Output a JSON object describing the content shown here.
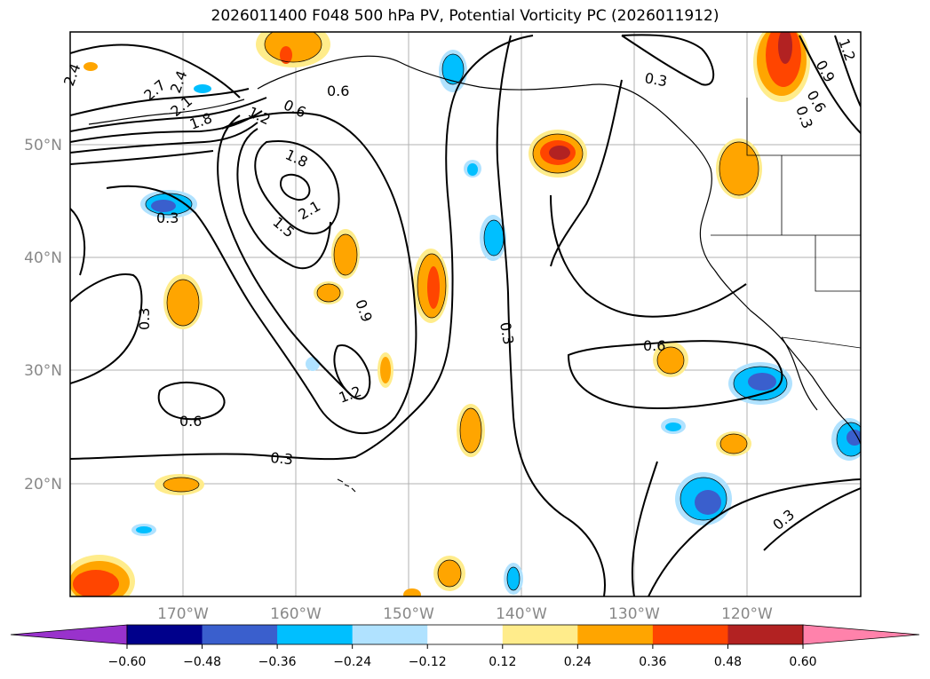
{
  "title": "2026011400 F048 500 hPa PV, Potential Vorticity PC (2026011912)",
  "map": {
    "lat_labels": [
      {
        "text": "50°N",
        "lat": 50
      },
      {
        "text": "40°N",
        "lat": 40
      },
      {
        "text": "30°N",
        "lat": 30
      },
      {
        "text": "20°N",
        "lat": 20
      }
    ],
    "lon_labels": [
      {
        "text": "170°W",
        "lon": -170
      },
      {
        "text": "160°W",
        "lon": -160
      },
      {
        "text": "150°W",
        "lon": -150
      },
      {
        "text": "140°W",
        "lon": -140
      },
      {
        "text": "130°W",
        "lon": -130
      },
      {
        "text": "120°W",
        "lon": -120
      }
    ],
    "contour_labels": [
      "2.4",
      "2.7",
      "2.4",
      "2.1",
      "1.8",
      "1.2",
      "0.6",
      "0.6",
      "1.8",
      "2.1",
      "1.5",
      "0.3",
      "0.3",
      "0.9",
      "1.2",
      "0.6",
      "0.3",
      "0.3",
      "0.6",
      "0.3",
      "1.2",
      "0.9",
      "0.6",
      "0.3",
      "0.3"
    ]
  },
  "colorbar": {
    "ticks": [
      "−0.60",
      "−0.48",
      "−0.36",
      "−0.24",
      "−0.12",
      "0.12",
      "0.24",
      "0.36",
      "0.48",
      "0.60"
    ],
    "colors": [
      "#9932cc",
      "#00008b",
      "#3a5fcd",
      "#00bfff",
      "#b0e2ff",
      "#ffffff",
      "#ffec8b",
      "#ffa500",
      "#ff4500",
      "#b22222",
      "#ff82ab"
    ]
  }
}
